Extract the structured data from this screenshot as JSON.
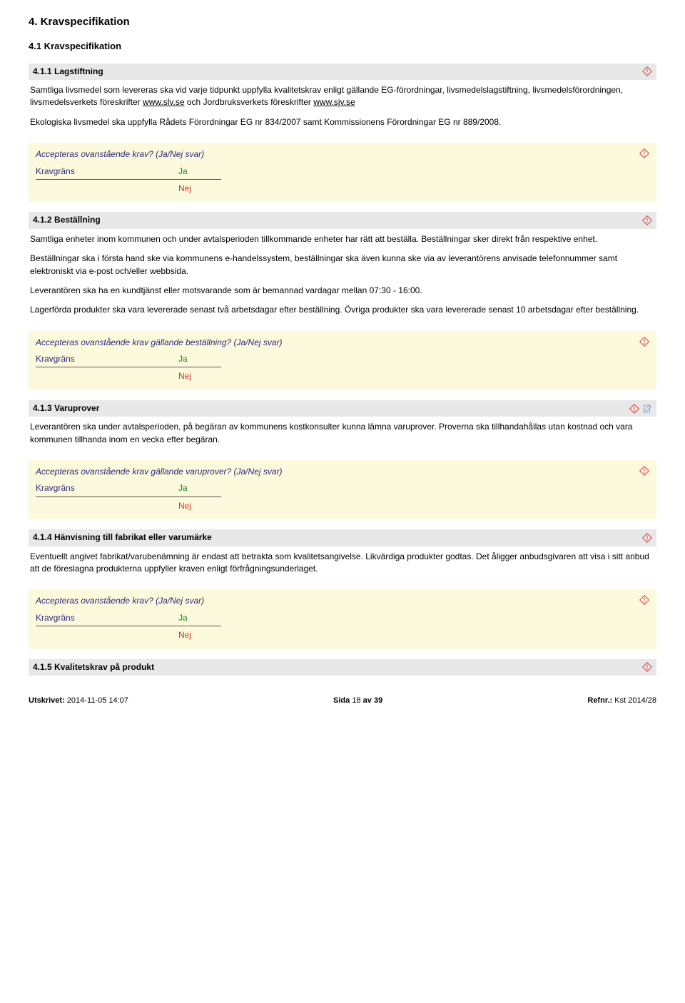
{
  "colors": {
    "section_bg": "#e8e8e8",
    "answer_bg": "#fdf9dd",
    "question_text": "#2a2a7a",
    "ja": "#1a8a1a",
    "nej": "#c0392b",
    "warn_stroke": "#d9534f",
    "edit_stroke": "#7db0d6"
  },
  "h1": "4. Kravspecifikation",
  "h2": "4.1 Kravspecifikation",
  "sections": [
    {
      "id": "s411",
      "title": "4.1.1 Lagstiftning",
      "icons": [
        "warn"
      ],
      "paras": [
        "Samtliga livsmedel som levereras ska vid varje tidpunkt uppfylla kvalitetskrav enligt gällande EG-förordningar, livsmedelslagstiftning, livsmedelsförordningen, livsmedelsverkets föreskrifter www.slv.se och Jordbruksverkets föreskrifter www.sjv.se",
        "Ekologiska livsmedel ska uppfylla Rådets Förordningar EG nr 834/2007 samt Kommissionens Förordningar EG nr 889/2008."
      ],
      "links": [
        "www.slv.se",
        "www.sjv.se"
      ],
      "question": "Accepteras ovanstående krav? (Ja/Nej svar)",
      "krav_label": "Kravgräns",
      "ja": "Ja",
      "nej": "Nej"
    },
    {
      "id": "s412",
      "title": "4.1.2 Beställning",
      "icons": [
        "warn"
      ],
      "paras": [
        "Samtliga enheter inom kommunen och under avtalsperioden tillkommande enheter har rätt att beställa. Beställningar sker direkt från respektive enhet.",
        "Beställningar ska i första hand ske via kommunens e-handelssystem, beställningar ska även kunna ske via av leverantörens anvisade telefonnummer samt elektroniskt via e-post och/eller webbsida.",
        "Leverantören ska ha en kundtjänst eller motsvarande som är bemannad vardagar mellan 07:30 - 16:00.",
        "Lagerförda produkter ska vara levererade senast två arbetsdagar efter beställning. Övriga produkter ska vara levererade senast 10 arbetsdagar efter beställning."
      ],
      "question": "Accepteras ovanstående krav gällande beställning? (Ja/Nej svar)",
      "krav_label": "Kravgräns",
      "ja": "Ja",
      "nej": "Nej"
    },
    {
      "id": "s413",
      "title": "4.1.3 Varuprover",
      "icons": [
        "warn",
        "edit"
      ],
      "paras": [
        "Leverantören ska under avtalsperioden, på begäran av kommunens kostkonsulter kunna lämna varuprover. Proverna ska tillhandahållas utan kostnad och vara kommunen tillhanda inom en vecka efter begäran."
      ],
      "question": "Accepteras ovanstående krav gällande varuprover? (Ja/Nej svar)",
      "krav_label": "Kravgräns",
      "ja": "Ja",
      "nej": "Nej"
    },
    {
      "id": "s414",
      "title": "4.1.4 Hänvisning till fabrikat eller varumärke",
      "icons": [
        "warn"
      ],
      "paras": [
        "Eventuellt angivet fabrikat/varubenämning är endast att betrakta som kvalitetsangivelse. Likvärdiga produkter godtas. Det åligger anbudsgivaren att visa i sitt anbud att de föreslagna produkterna uppfyller kraven enligt förfrågningsunderlaget."
      ],
      "question": "Accepteras ovanstående krav? (Ja/Nej svar)",
      "krav_label": "Kravgräns",
      "ja": "Ja",
      "nej": "Nej"
    },
    {
      "id": "s415",
      "title": "4.1.5 Kvalitetskrav på produkt",
      "icons": [
        "warn"
      ],
      "paras": [],
      "question": null
    }
  ],
  "footer": {
    "left_label": "Utskrivet:",
    "left_value": "2014-11-05 14:07",
    "mid_label": "Sida",
    "mid_value": "18",
    "mid_sep": "av",
    "mid_total": "39",
    "right_label": "Refnr.:",
    "right_value": "Kst 2014/28"
  }
}
